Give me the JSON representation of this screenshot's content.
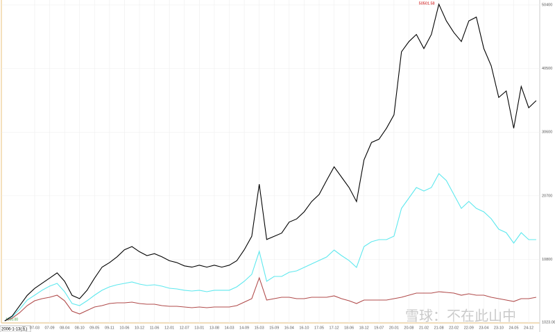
{
  "chart_data": {
    "type": "line",
    "categories": [
      null,
      null,
      null,
      null,
      "07-03",
      null,
      "07-09",
      null,
      "08-04",
      null,
      "08-10",
      null,
      "09-05",
      null,
      "09-11",
      null,
      "10-06",
      null,
      "10-12",
      null,
      "11-06",
      null,
      "12-01",
      null,
      "12-07",
      null,
      "13-01",
      null,
      "13-08",
      null,
      "14-03",
      null,
      "14-09",
      null,
      "15-03",
      null,
      "15-09",
      null,
      "16-04",
      null,
      "16-10",
      null,
      "17-05",
      null,
      "17-12",
      null,
      "18-06",
      null,
      "18-12",
      null,
      "19-07",
      null,
      "20-01",
      null,
      "20-08",
      null,
      "21-02",
      null,
      "21-08",
      null,
      "22-02",
      null,
      "22-09",
      null,
      "23-04",
      null,
      "23-10",
      null,
      "24-05",
      null,
      "24-12",
      null
    ],
    "series": [
      {
        "color": "#000000",
        "values": [
          1240,
          2000,
          3600,
          5200,
          6300,
          7100,
          7900,
          8700,
          7400,
          5200,
          4700,
          6000,
          7900,
          9600,
          10300,
          11200,
          12300,
          12800,
          12000,
          11400,
          11700,
          11200,
          10600,
          10300,
          9800,
          9600,
          9900,
          9600,
          9900,
          9600,
          9900,
          10600,
          12300,
          14400,
          22500,
          13900,
          14400,
          14900,
          16600,
          17100,
          18200,
          19800,
          20900,
          23100,
          25200,
          23600,
          22000,
          19800,
          26300,
          29000,
          29500,
          31200,
          33300,
          43100,
          44700,
          45800,
          43600,
          45800,
          50501.58,
          47900,
          46100,
          44700,
          47900,
          48500,
          43600,
          40900,
          36000,
          37000,
          31200,
          37700,
          34400,
          35500
        ]
      },
      {
        "color": "#5ee8ee",
        "values": [
          1240,
          1890,
          3070,
          4480,
          5240,
          6000,
          6640,
          7070,
          5780,
          3940,
          3620,
          4370,
          5240,
          6000,
          6530,
          6860,
          7070,
          7290,
          6970,
          6750,
          6860,
          6640,
          6320,
          6210,
          6000,
          5890,
          6000,
          5780,
          6000,
          6000,
          6000,
          6530,
          7400,
          8480,
          12050,
          7400,
          8150,
          8150,
          8800,
          9020,
          9560,
          10100,
          10640,
          11180,
          12260,
          11400,
          10640,
          9560,
          12800,
          13560,
          13880,
          13880,
          14420,
          18740,
          20360,
          21980,
          21440,
          21980,
          24140,
          23060,
          20900,
          18740,
          19820,
          18740,
          18200,
          17120,
          15500,
          14960,
          13340,
          14960,
          13880,
          13880
        ]
      },
      {
        "color": "#b04a4a",
        "values": [
          1240,
          1670,
          2530,
          3620,
          4370,
          4700,
          4910,
          5240,
          4370,
          2750,
          2320,
          2860,
          3400,
          3620,
          3940,
          4050,
          4050,
          4160,
          3940,
          3830,
          3830,
          3620,
          3510,
          3510,
          3400,
          3290,
          3400,
          3290,
          3400,
          3400,
          3400,
          3620,
          4160,
          4700,
          7940,
          4480,
          4700,
          4910,
          4910,
          4700,
          4700,
          4910,
          4910,
          4910,
          5130,
          4700,
          4370,
          3940,
          4480,
          4480,
          4480,
          4480,
          4700,
          4910,
          5240,
          5560,
          5560,
          5560,
          5780,
          5670,
          5560,
          5240,
          5450,
          5240,
          5240,
          4910,
          4700,
          4480,
          4260,
          4700,
          4700,
          4910
        ]
      }
    ],
    "ylim": [
      1023.08,
      50400
    ],
    "yticks": [
      1023.08,
      10800,
      20700,
      30600,
      40500,
      50400
    ],
    "grid": true,
    "start_label": "1000.00",
    "cursor_label": "2006-1-13(五)",
    "watermark": "雪球：不在此山中"
  }
}
